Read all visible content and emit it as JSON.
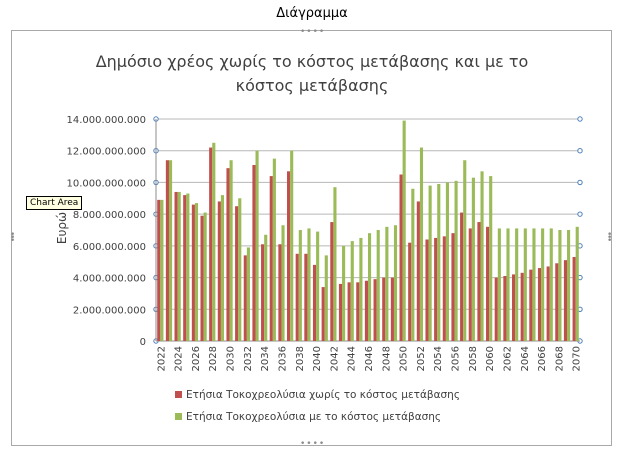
{
  "window": {
    "title": "Διάγραμμα"
  },
  "tooltip": {
    "text": "Chart Area"
  },
  "chart_data": {
    "type": "bar",
    "title": "Δημόσιο χρέος χωρίς το κόστος μετάβασης και με το κόστος μετάβασης",
    "title_lines": [
      "Δημόσιο χρέος χωρίς το κόστος μετάβασης και με το",
      "κόστος μετάβασης"
    ],
    "ylabel": "Ευρώ",
    "xlabel": "",
    "ylim": [
      0,
      14000000000
    ],
    "y_ticks": [
      0,
      2000000000,
      4000000000,
      6000000000,
      8000000000,
      10000000000,
      12000000000,
      14000000000
    ],
    "y_tick_labels": [
      "0",
      "2.000.000.000",
      "4.000.000.000",
      "6.000.000.000",
      "8.000.000.000",
      "10.000.000.000",
      "12.000.000.000",
      "14.000.000.000"
    ],
    "categories": [
      2022,
      2023,
      2024,
      2025,
      2026,
      2027,
      2028,
      2029,
      2030,
      2031,
      2032,
      2033,
      2034,
      2035,
      2036,
      2037,
      2038,
      2039,
      2040,
      2041,
      2042,
      2043,
      2044,
      2045,
      2046,
      2047,
      2048,
      2049,
      2050,
      2051,
      2052,
      2053,
      2054,
      2055,
      2056,
      2057,
      2058,
      2059,
      2060,
      2061,
      2062,
      2063,
      2064,
      2065,
      2066,
      2067,
      2068,
      2069,
      2070
    ],
    "x_tick_labels": [
      "2022",
      "2024",
      "2026",
      "2028",
      "2030",
      "2032",
      "2034",
      "2036",
      "2038",
      "2040",
      "2042",
      "2044",
      "2046",
      "2048",
      "2050",
      "2052",
      "2054",
      "2056",
      "2058",
      "2060",
      "2062",
      "2064",
      "2066",
      "2068",
      "2070"
    ],
    "series": [
      {
        "name": "Ετήσια Τοκοχρεολύσια χωρίς το κόστος μετάβασης",
        "color": "#c0504d",
        "values": [
          8900000000,
          11400000000,
          9400000000,
          9200000000,
          8600000000,
          7900000000,
          12200000000,
          8800000000,
          10900000000,
          8500000000,
          5400000000,
          11100000000,
          6100000000,
          10400000000,
          6100000000,
          10700000000,
          5500000000,
          5500000000,
          4800000000,
          3400000000,
          7500000000,
          3600000000,
          3700000000,
          3700000000,
          3800000000,
          3900000000,
          4000000000,
          4000000000,
          10500000000,
          6200000000,
          8800000000,
          6400000000,
          6500000000,
          6600000000,
          6800000000,
          8100000000,
          7100000000,
          7500000000,
          7200000000,
          4000000000,
          4100000000,
          4200000000,
          4300000000,
          4500000000,
          4600000000,
          4700000000,
          4900000000,
          5100000000,
          5300000000
        ]
      },
      {
        "name": "Ετήσια Τοκοχρεολύσια με το κόστος μετάβασης",
        "color": "#9bbb59",
        "values": [
          8900000000,
          11400000000,
          9400000000,
          9300000000,
          8700000000,
          8100000000,
          12500000000,
          9200000000,
          11400000000,
          9000000000,
          5900000000,
          12000000000,
          6700000000,
          11500000000,
          7300000000,
          12000000000,
          7000000000,
          7100000000,
          6900000000,
          5400000000,
          9700000000,
          6000000000,
          6300000000,
          6500000000,
          6800000000,
          7000000000,
          7200000000,
          7300000000,
          13900000000,
          9600000000,
          12200000000,
          9800000000,
          9900000000,
          10000000000,
          10100000000,
          11400000000,
          10300000000,
          10700000000,
          10400000000,
          7100000000,
          7100000000,
          7100000000,
          7100000000,
          7100000000,
          7100000000,
          7100000000,
          7000000000,
          7000000000,
          7200000000
        ]
      }
    ],
    "grid": true,
    "legend": "bottom"
  }
}
